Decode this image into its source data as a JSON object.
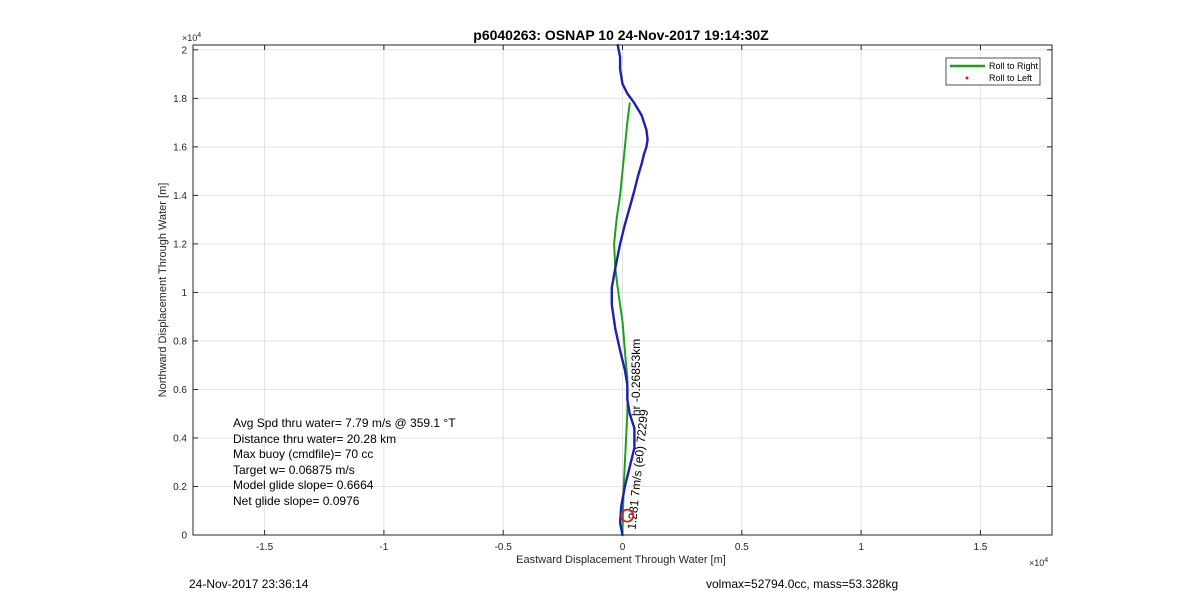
{
  "chart_data": {
    "type": "line",
    "title": "p6040263: OSNAP 10 24-Nov-2017 19:14:30Z",
    "xlabel": "Eastward Displacement Through Water [m]",
    "ylabel": "Northward Displacement Through Water [m]",
    "x_exponent_label": "×10",
    "x_exponent_power": "4",
    "y_exponent_label": "×10",
    "y_exponent_power": "4",
    "xlim": [
      -1.8,
      1.8
    ],
    "ylim": [
      0,
      2.02
    ],
    "x_ticks": [
      -1.5,
      -1,
      -0.5,
      0,
      0.5,
      1,
      1.5
    ],
    "x_tick_labels": [
      "-1.5",
      "-1",
      "-0.5",
      "0",
      "0.5",
      "1",
      "1.5"
    ],
    "y_ticks": [
      0,
      0.2,
      0.4,
      0.6,
      0.8,
      1,
      1.2,
      1.4,
      1.6,
      1.8,
      2
    ],
    "y_tick_labels": [
      "0",
      "0.2",
      "0.4",
      "0.6",
      "0.8",
      "1",
      "1.2",
      "1.4",
      "1.6",
      "1.8",
      "2"
    ],
    "grid": true,
    "legend_position": "top-right",
    "series": [
      {
        "name": "Roll to Right",
        "color": "#1aa31a",
        "x": [
          0.0,
          0.002,
          0.005,
          0.01,
          0.015,
          0.02,
          0.022,
          0.02,
          0.015,
          0.01,
          0.005,
          0.0,
          -0.01,
          -0.02,
          -0.03,
          -0.035,
          -0.025,
          -0.01,
          0.0,
          0.01,
          0.02,
          0.03
        ],
        "y": [
          0.0,
          0.1,
          0.2,
          0.3,
          0.4,
          0.5,
          0.58,
          0.65,
          0.7,
          0.76,
          0.82,
          0.88,
          0.95,
          1.02,
          1.1,
          1.2,
          1.3,
          1.4,
          1.5,
          1.6,
          1.7,
          1.78
        ]
      },
      {
        "name": "",
        "color": "#1f1fb0",
        "x": [
          0.0,
          -0.01,
          -0.005,
          0.01,
          0.03,
          0.05,
          0.05,
          0.03,
          0.02,
          0.02,
          0.01,
          -0.01,
          -0.03,
          -0.045,
          -0.045,
          -0.03,
          -0.01,
          0.01,
          0.03,
          0.05,
          0.065,
          0.08,
          0.09,
          0.1,
          0.105,
          0.1,
          0.08,
          0.05,
          0.02,
          0.0,
          -0.01,
          -0.01,
          -0.02
        ],
        "y": [
          0.0,
          0.05,
          0.12,
          0.2,
          0.28,
          0.36,
          0.44,
          0.5,
          0.56,
          0.62,
          0.68,
          0.76,
          0.85,
          0.95,
          1.02,
          1.1,
          1.2,
          1.28,
          1.35,
          1.42,
          1.48,
          1.53,
          1.57,
          1.6,
          1.63,
          1.67,
          1.73,
          1.78,
          1.82,
          1.86,
          1.92,
          1.97,
          2.02
        ]
      }
    ],
    "legend_entries": [
      {
        "label": "Roll to Right",
        "style": "line",
        "color": "#1aa31a"
      },
      {
        "label": "Roll to Left",
        "style": "marker",
        "color": "#d62020"
      }
    ],
    "start_marker": {
      "x": 0.02,
      "y": 0.08,
      "color": "#d62020"
    },
    "annotation_lower": "1.281 7m/s (e0) 72299",
    "annotation_upper": "hr  -0.26853km",
    "stats": [
      "Avg Spd thru water=  7.79 m/s @ 359.1 °T",
      "Distance thru water= 20.28 km",
      "Max buoy (cmdfile)= 70 cc",
      "Target w= 0.06875 m/s",
      "Model glide slope= 0.6664",
      "Net glide slope= 0.0976"
    ]
  },
  "footer": {
    "left": "24-Nov-2017 23:36:14",
    "right": "volmax=52794.0cc, mass=53.328kg"
  }
}
